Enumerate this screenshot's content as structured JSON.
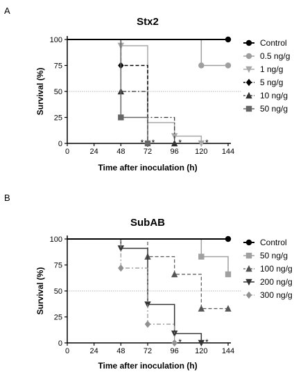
{
  "chart_data": [
    {
      "type": "line",
      "panel": "A",
      "title": "Stx2",
      "xlabel": "Time after inoculation (h)",
      "ylabel": "Survival (%)",
      "xlim": [
        0,
        144
      ],
      "ylim": [
        0,
        100
      ],
      "xticks": [
        0,
        24,
        48,
        72,
        96,
        120,
        144
      ],
      "yticks": [
        0,
        25,
        50,
        75,
        100
      ],
      "reference_line": 50,
      "legend_position": "right",
      "series": [
        {
          "name": "Control",
          "color": "#000000",
          "dash": "solid",
          "marker": "circle",
          "width": 2,
          "steps": [
            [
              0,
              100
            ],
            [
              144,
              100
            ]
          ],
          "markers": [
            [
              144,
              100
            ]
          ]
        },
        {
          "name": "0.5 ng/g",
          "color": "#9e9e9e",
          "dash": "solid",
          "marker": "circle",
          "width": 1.5,
          "steps": [
            [
              0,
              100
            ],
            [
              120,
              100
            ],
            [
              120,
              75
            ],
            [
              144,
              75
            ]
          ],
          "markers": [
            [
              120,
              75
            ],
            [
              144,
              75
            ]
          ]
        },
        {
          "name": "1 ng/g",
          "color": "#a8a8a8",
          "dash": "solid",
          "marker": "triangle-down",
          "width": 1.5,
          "steps": [
            [
              0,
              100
            ],
            [
              48,
              100
            ],
            [
              48,
              94
            ],
            [
              72,
              94
            ],
            [
              72,
              20
            ],
            [
              96,
              20
            ],
            [
              96,
              7
            ],
            [
              120,
              7
            ],
            [
              120,
              0
            ]
          ],
          "markers": [
            [
              48,
              94
            ],
            [
              96,
              7
            ],
            [
              120,
              0
            ]
          ]
        },
        {
          "name": "5 ng/g",
          "color": "#000000",
          "dash": "dash",
          "marker": "diamond",
          "width": 1.5,
          "steps": [
            [
              0,
              100
            ],
            [
              48,
              100
            ],
            [
              48,
              75
            ],
            [
              72,
              75
            ],
            [
              72,
              0
            ]
          ],
          "markers": [
            [
              48,
              75
            ],
            [
              72,
              0
            ]
          ]
        },
        {
          "name": "10 ng/g",
          "color": "#333333",
          "dash": "dashdot",
          "marker": "triangle-up",
          "width": 1.2,
          "steps": [
            [
              0,
              100
            ],
            [
              48,
              100
            ],
            [
              48,
              50
            ],
            [
              72,
              50
            ],
            [
              72,
              25
            ],
            [
              96,
              25
            ],
            [
              96,
              0
            ]
          ],
          "markers": [
            [
              48,
              50
            ],
            [
              96,
              0
            ]
          ]
        },
        {
          "name": "50 ng/g",
          "color": "#666666",
          "dash": "solid",
          "marker": "square",
          "width": 1.5,
          "steps": [
            [
              0,
              100
            ],
            [
              48,
              100
            ],
            [
              48,
              25
            ],
            [
              72,
              25
            ],
            [
              72,
              0
            ]
          ],
          "markers": [
            [
              48,
              25
            ],
            [
              72,
              0
            ]
          ]
        }
      ],
      "annotations": [
        {
          "text": "*",
          "x": 72,
          "y": 0,
          "align": "left-of"
        },
        {
          "text": "*",
          "x": 72,
          "y": 0,
          "align": "right-of"
        },
        {
          "text": "*",
          "x": 96,
          "y": 0,
          "align": "right-of"
        },
        {
          "text": "*",
          "x": 120,
          "y": 0,
          "align": "right-of"
        }
      ]
    },
    {
      "type": "line",
      "panel": "B",
      "title": "SubAB",
      "xlabel": "Time after inoculation (h)",
      "ylabel": "Survival (%)",
      "xlim": [
        0,
        144
      ],
      "ylim": [
        0,
        100
      ],
      "xticks": [
        0,
        24,
        48,
        72,
        96,
        120,
        144
      ],
      "yticks": [
        0,
        25,
        50,
        75,
        100
      ],
      "reference_line": 50,
      "legend_position": "right",
      "series": [
        {
          "name": "Control",
          "color": "#000000",
          "dash": "solid",
          "marker": "circle",
          "width": 2,
          "steps": [
            [
              0,
              100
            ],
            [
              144,
              100
            ]
          ],
          "markers": [
            [
              144,
              100
            ]
          ]
        },
        {
          "name": "50 ng/g",
          "color": "#a0a0a0",
          "dash": "solid",
          "marker": "square",
          "width": 1.5,
          "steps": [
            [
              0,
              100
            ],
            [
              120,
              100
            ],
            [
              120,
              83
            ],
            [
              144,
              83
            ],
            [
              144,
              66
            ]
          ],
          "markers": [
            [
              120,
              83
            ],
            [
              144,
              66
            ]
          ]
        },
        {
          "name": "100 ng/g",
          "color": "#555555",
          "dash": "dash",
          "marker": "triangle-up",
          "width": 1.2,
          "steps": [
            [
              0,
              100
            ],
            [
              72,
              100
            ],
            [
              72,
              83
            ],
            [
              96,
              83
            ],
            [
              96,
              66
            ],
            [
              120,
              66
            ],
            [
              120,
              33
            ],
            [
              144,
              33
            ]
          ],
          "markers": [
            [
              72,
              83
            ],
            [
              96,
              66
            ],
            [
              120,
              33
            ],
            [
              144,
              33
            ]
          ]
        },
        {
          "name": "200  ng/g",
          "color": "#333333",
          "dash": "solid",
          "marker": "triangle-down",
          "width": 1.5,
          "steps": [
            [
              0,
              100
            ],
            [
              48,
              100
            ],
            [
              48,
              91
            ],
            [
              72,
              91
            ],
            [
              72,
              37
            ],
            [
              96,
              37
            ],
            [
              96,
              9
            ],
            [
              120,
              9
            ],
            [
              120,
              0
            ]
          ],
          "markers": [
            [
              48,
              91
            ],
            [
              72,
              37
            ],
            [
              96,
              9
            ],
            [
              120,
              0
            ]
          ]
        },
        {
          "name": "300  ng/g",
          "color": "#909090",
          "dash": "dashdot",
          "marker": "diamond",
          "width": 1.2,
          "steps": [
            [
              0,
              100
            ],
            [
              48,
              100
            ],
            [
              48,
              72
            ],
            [
              72,
              72
            ],
            [
              72,
              18
            ],
            [
              96,
              18
            ],
            [
              96,
              0
            ]
          ],
          "markers": [
            [
              48,
              72
            ],
            [
              72,
              18
            ],
            [
              96,
              0
            ]
          ]
        }
      ],
      "annotations": [
        {
          "text": "*",
          "x": 96,
          "y": 0,
          "align": "right-of"
        },
        {
          "text": "*",
          "x": 120,
          "y": 0,
          "align": "right-of"
        }
      ]
    }
  ]
}
